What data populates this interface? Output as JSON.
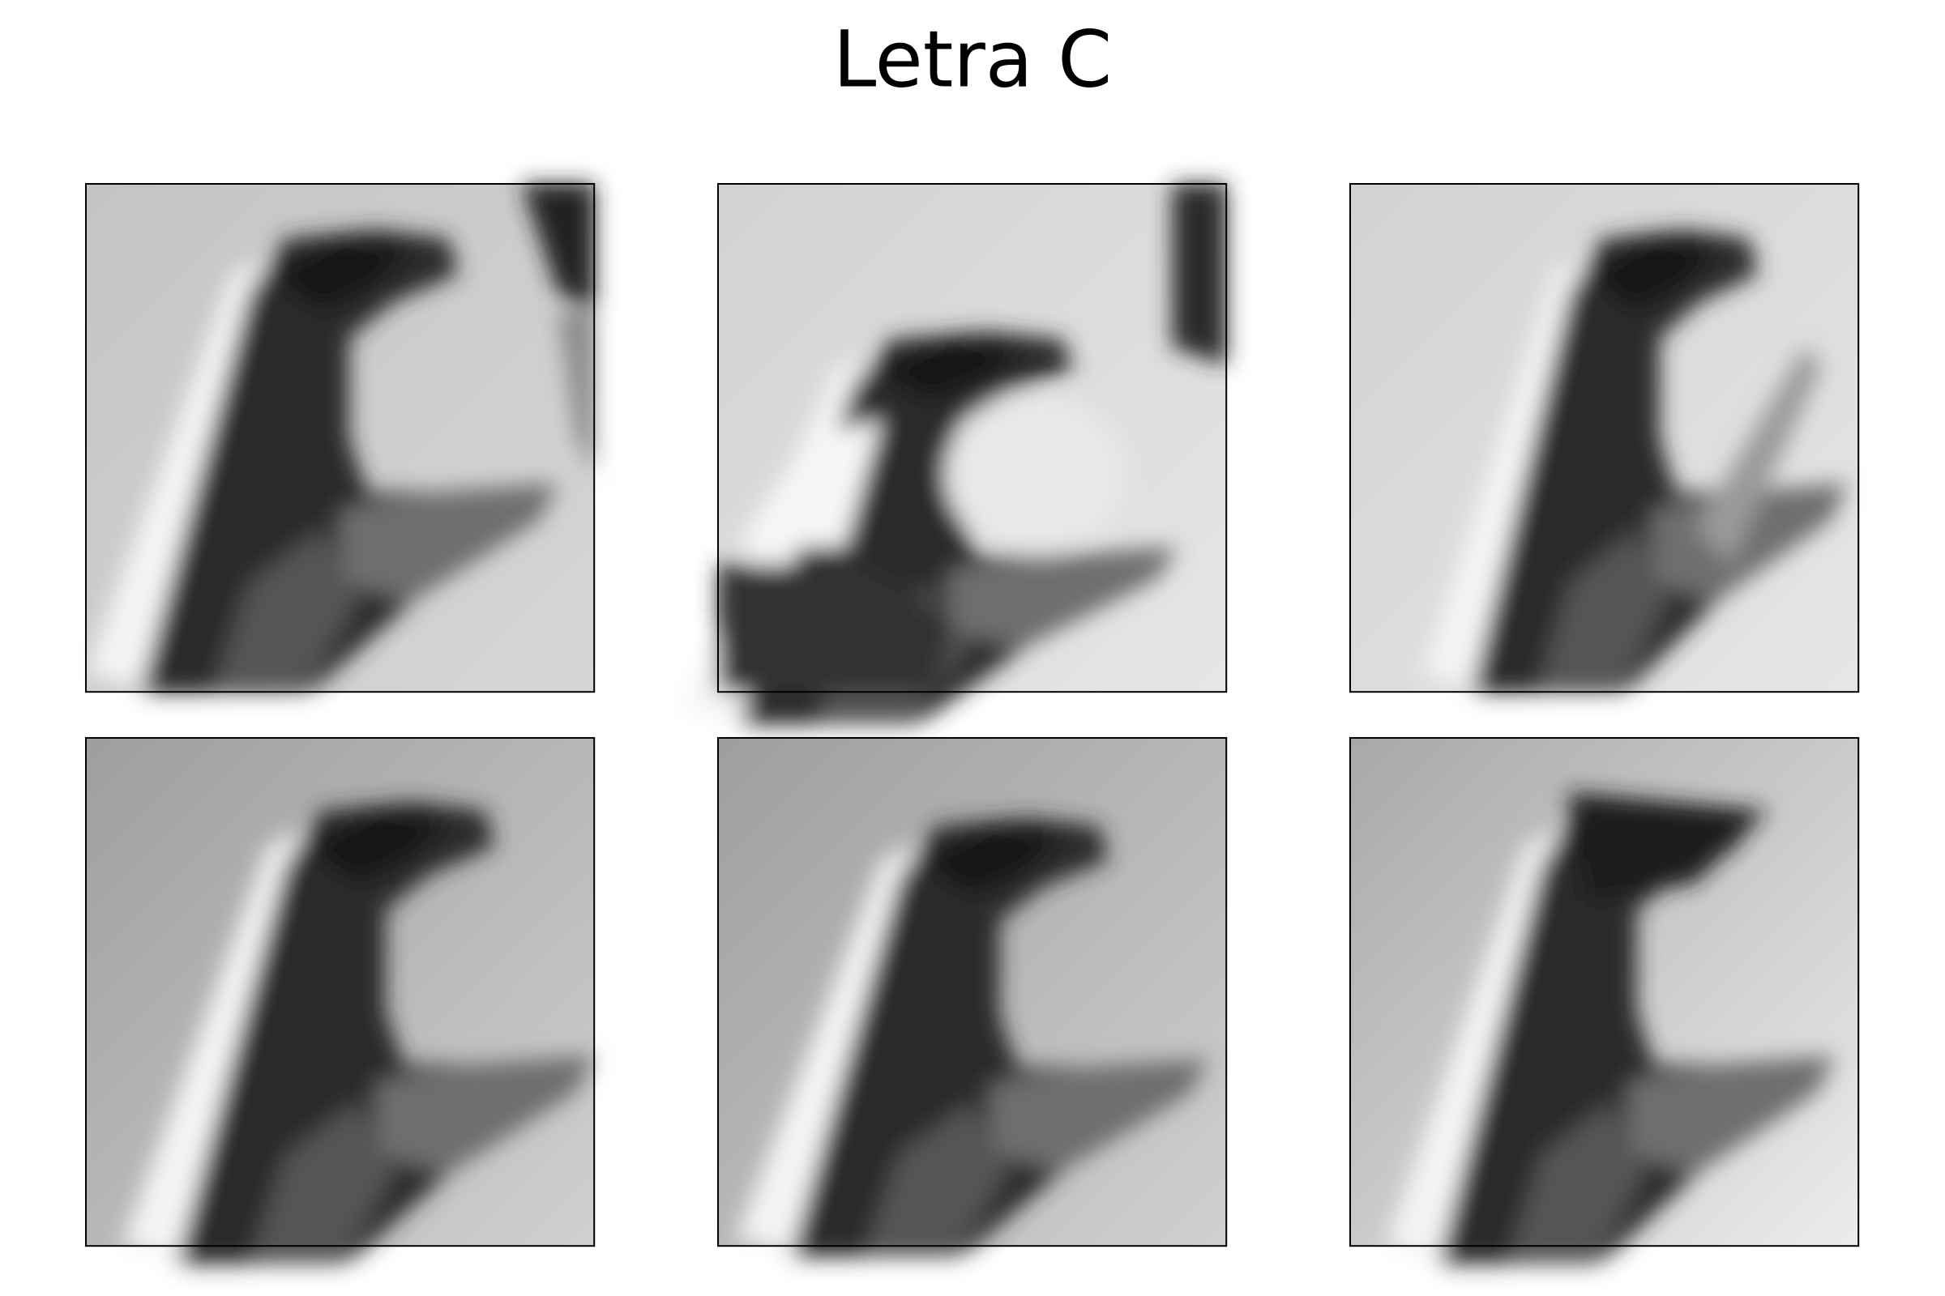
{
  "figure": {
    "title": "Letra C"
  }
}
